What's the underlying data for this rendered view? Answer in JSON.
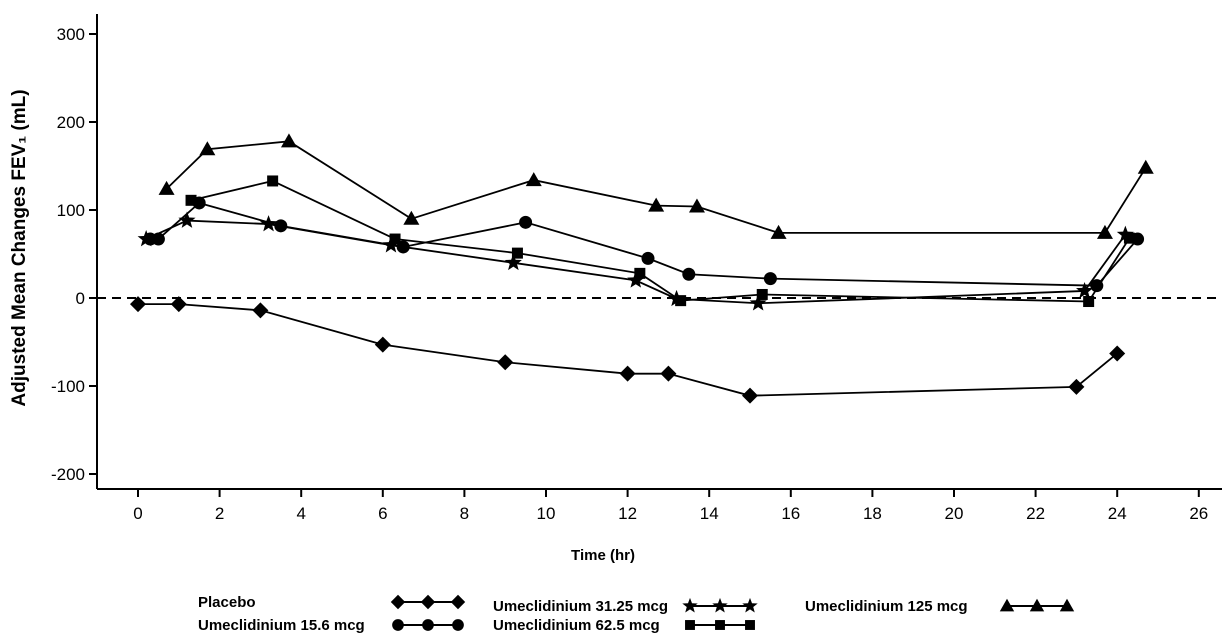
{
  "chart_data": {
    "type": "line",
    "title": "",
    "xlabel": "Time (hr)",
    "ylabel": "Adjusted Mean Changes FEV₁ (mL)",
    "xlim": [
      -1,
      27
    ],
    "ylim": [
      -230,
      310
    ],
    "xticks": [
      0,
      2,
      4,
      6,
      8,
      10,
      12,
      14,
      16,
      18,
      20,
      22,
      24,
      26
    ],
    "yticks": [
      -200,
      -100,
      0,
      100,
      200,
      300
    ],
    "reference_line": {
      "y": 0,
      "style": "dashed"
    },
    "grid": false,
    "legend_position": "bottom",
    "series": [
      {
        "name": "Placebo",
        "marker": "diamond",
        "x": [
          0,
          1,
          3,
          6,
          9,
          12,
          13,
          15,
          23,
          24
        ],
        "y": [
          -7,
          -7,
          -14,
          -53,
          -73,
          -86,
          -86,
          -111,
          -101,
          -63
        ]
      },
      {
        "name": "Umeclidinium 15.6 mcg",
        "marker": "circle",
        "x": [
          0.3,
          0.5,
          1.5,
          3.5,
          6.5,
          9.5,
          12.5,
          13.5,
          15.5,
          23.5,
          24.5
        ],
        "y": [
          67,
          67,
          108,
          82,
          58,
          86,
          45,
          27,
          22,
          14,
          67
        ]
      },
      {
        "name": "Umeclidinium 31.25 mcg",
        "marker": "star",
        "x": [
          0.2,
          1.2,
          3.2,
          6.2,
          9.2,
          12.2,
          13.2,
          15.2,
          23.2,
          24.2
        ],
        "y": [
          67,
          88,
          84,
          60,
          40,
          20,
          -1,
          -6,
          8,
          72
        ]
      },
      {
        "name": "Umeclidinium 62.5 mcg",
        "marker": "square",
        "x": [
          1.3,
          3.3,
          6.3,
          9.3,
          12.3,
          13.3,
          15.3,
          23.3,
          24.3
        ],
        "y": [
          111,
          133,
          67,
          51,
          28,
          -3,
          4,
          -4,
          68
        ]
      },
      {
        "name": "Umeclidinium 125 mcg",
        "marker": "triangle",
        "x": [
          0.7,
          1.7,
          3.7,
          6.7,
          9.7,
          12.7,
          13.7,
          15.7,
          23.7,
          24.7
        ],
        "y": [
          124,
          169,
          178,
          90,
          134,
          105,
          104,
          74,
          74,
          148
        ]
      }
    ]
  }
}
